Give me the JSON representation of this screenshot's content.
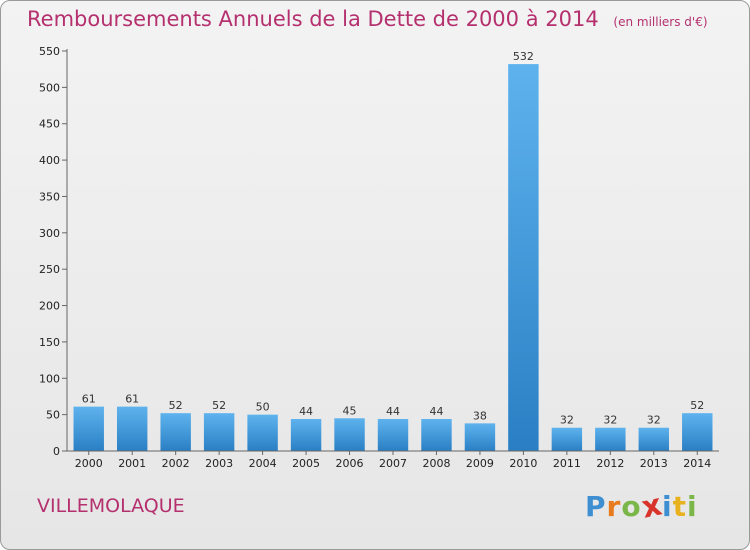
{
  "title": {
    "main": "Remboursements Annuels de la Dette de 2000 à 2014",
    "unit": "(en milliers d'€)"
  },
  "commune": "VILLEMOLAQUE",
  "logo": {
    "letters": [
      "P",
      "r",
      "o",
      "x",
      "i",
      "t",
      "i"
    ],
    "colors": [
      "#3d8fd1",
      "#e87b1e",
      "#7ab648",
      "#d9342b",
      "#3d8fd1",
      "#e8b21e",
      "#7ab648"
    ]
  },
  "colors": {
    "bar_light": "#5eb3ee",
    "bar_dark": "#2a7fc4",
    "title": "#b5306e"
  },
  "chart_data": {
    "type": "bar",
    "categories": [
      "2000",
      "2001",
      "2002",
      "2003",
      "2004",
      "2005",
      "2006",
      "2007",
      "2008",
      "2009",
      "2010",
      "2011",
      "2012",
      "2013",
      "2014"
    ],
    "values": [
      61,
      61,
      52,
      52,
      50,
      44,
      45,
      44,
      44,
      38,
      532,
      32,
      32,
      32,
      52
    ],
    "ylim": [
      0,
      550
    ],
    "yticks": [
      0,
      50,
      100,
      150,
      200,
      250,
      300,
      350,
      400,
      450,
      500,
      550
    ],
    "grid": false,
    "legend": "none"
  }
}
